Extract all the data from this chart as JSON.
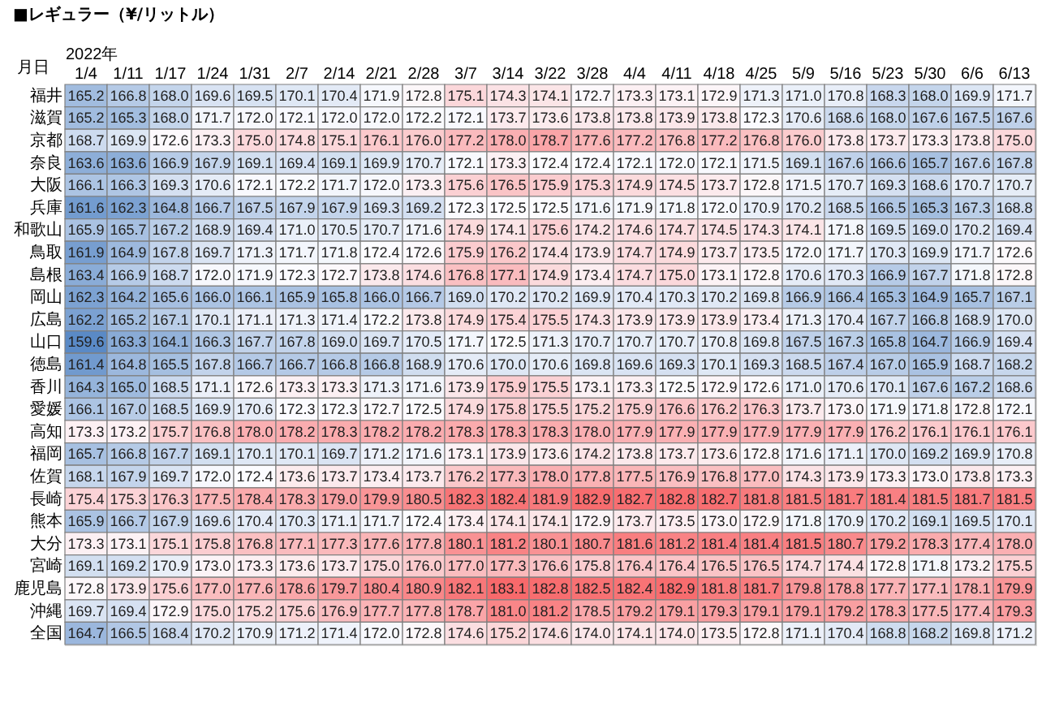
{
  "chart_data": {
    "type": "heatmap",
    "title": "■レギュラー（¥/リットル）",
    "xlabel": "2022年",
    "ylabel": "月日",
    "categories": [
      "1/4",
      "1/11",
      "1/17",
      "1/24",
      "1/31",
      "2/7",
      "2/14",
      "2/21",
      "2/28",
      "3/7",
      "3/14",
      "3/22",
      "3/28",
      "4/4",
      "4/11",
      "4/18",
      "4/25",
      "5/9",
      "5/16",
      "5/23",
      "5/30",
      "6/6",
      "6/13"
    ],
    "y_categories": [
      "福井",
      "滋賀",
      "京都",
      "奈良",
      "大阪",
      "兵庫",
      "和歌山",
      "鳥取",
      "島根",
      "岡山",
      "広島",
      "山口",
      "徳島",
      "香川",
      "愛媛",
      "高知",
      "福岡",
      "佐賀",
      "長崎",
      "熊本",
      "大分",
      "宮崎",
      "鹿児島",
      "沖縄",
      "全国"
    ],
    "cells": [
      [
        165.2,
        166.8,
        168.0,
        169.6,
        169.5,
        170.1,
        170.4,
        171.9,
        172.8,
        175.1,
        174.3,
        174.1,
        172.7,
        173.3,
        173.1,
        172.9,
        171.3,
        171.0,
        170.8,
        168.3,
        168.0,
        169.9,
        171.7
      ],
      [
        165.2,
        165.3,
        168.0,
        171.7,
        172.0,
        172.1,
        172.0,
        172.0,
        172.2,
        172.1,
        173.7,
        173.6,
        173.8,
        173.8,
        173.9,
        173.8,
        172.3,
        170.6,
        168.6,
        168.0,
        167.6,
        167.5,
        167.6
      ],
      [
        168.7,
        169.9,
        172.6,
        173.3,
        175.0,
        174.8,
        175.1,
        176.1,
        176.0,
        177.2,
        178.0,
        178.7,
        177.6,
        177.2,
        176.8,
        177.2,
        176.8,
        176.0,
        173.8,
        173.7,
        173.3,
        173.8,
        175.0
      ],
      [
        163.6,
        163.6,
        166.9,
        167.9,
        169.1,
        169.4,
        169.1,
        169.9,
        170.7,
        172.1,
        173.3,
        172.4,
        172.4,
        172.1,
        172.0,
        172.1,
        171.5,
        169.1,
        167.6,
        166.6,
        165.7,
        167.6,
        167.8
      ],
      [
        166.1,
        166.3,
        169.3,
        170.6,
        172.1,
        172.2,
        171.7,
        172.0,
        173.3,
        175.6,
        176.5,
        175.9,
        175.3,
        174.9,
        174.5,
        173.7,
        172.8,
        171.5,
        170.7,
        169.3,
        168.6,
        170.7,
        170.7
      ],
      [
        161.6,
        162.3,
        164.8,
        166.7,
        167.5,
        167.9,
        167.9,
        169.3,
        169.2,
        172.3,
        172.5,
        172.5,
        171.6,
        171.9,
        171.8,
        172.0,
        170.9,
        170.2,
        168.5,
        166.5,
        165.3,
        167.3,
        168.8
      ],
      [
        165.9,
        165.7,
        167.2,
        168.9,
        169.4,
        171.0,
        170.5,
        170.7,
        171.6,
        174.9,
        174.1,
        175.6,
        174.2,
        174.6,
        174.7,
        174.5,
        174.3,
        174.1,
        171.8,
        169.5,
        169.0,
        170.2,
        169.4
      ],
      [
        161.9,
        164.9,
        167.8,
        169.7,
        171.3,
        171.7,
        171.8,
        172.4,
        172.6,
        175.9,
        176.2,
        174.4,
        173.9,
        174.7,
        174.9,
        173.7,
        173.5,
        172.0,
        171.7,
        170.3,
        169.9,
        171.7,
        172.6
      ],
      [
        163.4,
        166.9,
        168.7,
        172.0,
        171.9,
        172.3,
        172.7,
        173.8,
        174.6,
        176.8,
        177.1,
        174.9,
        173.4,
        174.7,
        175.0,
        173.1,
        172.8,
        170.6,
        170.3,
        166.9,
        167.7,
        171.8,
        172.8
      ],
      [
        162.3,
        164.2,
        165.6,
        166.0,
        166.1,
        165.9,
        165.8,
        166.0,
        166.7,
        169.0,
        170.2,
        170.2,
        169.9,
        170.4,
        170.3,
        170.2,
        169.8,
        166.9,
        166.4,
        165.3,
        164.9,
        165.7,
        167.1
      ],
      [
        162.2,
        165.2,
        167.1,
        170.1,
        171.1,
        171.3,
        171.4,
        172.2,
        173.8,
        174.9,
        175.4,
        175.5,
        174.3,
        173.9,
        173.9,
        173.9,
        173.4,
        171.3,
        170.4,
        167.7,
        166.8,
        168.9,
        170.0
      ],
      [
        159.6,
        163.3,
        164.1,
        166.3,
        167.7,
        167.8,
        169.0,
        169.7,
        170.5,
        171.7,
        172.5,
        171.3,
        170.7,
        170.7,
        170.7,
        170.8,
        169.8,
        167.5,
        167.3,
        165.8,
        164.7,
        166.9,
        169.4
      ],
      [
        161.4,
        164.8,
        165.5,
        167.8,
        166.7,
        166.7,
        166.8,
        166.8,
        168.9,
        170.6,
        170.0,
        170.6,
        169.8,
        169.6,
        169.3,
        170.1,
        169.3,
        168.5,
        167.4,
        167.0,
        165.9,
        168.7,
        168.2
      ],
      [
        164.3,
        165.0,
        168.5,
        171.1,
        172.6,
        173.3,
        173.3,
        171.3,
        171.6,
        173.9,
        175.9,
        175.5,
        173.1,
        173.3,
        172.5,
        172.9,
        172.6,
        171.0,
        170.6,
        170.1,
        167.6,
        167.2,
        168.6
      ],
      [
        166.1,
        167.0,
        168.5,
        169.9,
        170.6,
        172.3,
        172.3,
        172.7,
        172.5,
        174.9,
        175.8,
        175.5,
        175.2,
        175.9,
        176.6,
        176.2,
        176.3,
        173.7,
        173.0,
        171.9,
        171.8,
        172.8,
        172.1
      ],
      [
        173.3,
        173.2,
        175.7,
        176.8,
        178.0,
        178.2,
        178.3,
        178.2,
        178.2,
        178.3,
        178.3,
        178.3,
        178.0,
        177.9,
        177.9,
        177.9,
        177.9,
        177.9,
        177.9,
        176.2,
        176.1,
        176.1,
        176.1
      ],
      [
        165.7,
        166.8,
        167.7,
        169.1,
        170.1,
        170.1,
        169.7,
        171.2,
        171.6,
        173.1,
        173.9,
        173.6,
        174.2,
        173.8,
        173.7,
        173.6,
        172.8,
        171.6,
        171.1,
        170.0,
        169.2,
        169.9,
        170.8
      ],
      [
        168.1,
        167.9,
        169.7,
        172.0,
        172.4,
        173.6,
        173.7,
        173.4,
        173.7,
        176.2,
        177.3,
        178.0,
        177.8,
        177.5,
        176.9,
        176.8,
        177.0,
        174.3,
        173.9,
        173.3,
        173.0,
        173.8,
        173.3
      ],
      [
        175.4,
        175.3,
        176.3,
        177.5,
        178.4,
        178.3,
        179.0,
        179.9,
        180.5,
        182.3,
        182.4,
        181.9,
        182.9,
        182.7,
        182.8,
        182.7,
        181.8,
        181.5,
        181.7,
        181.4,
        181.5,
        181.7,
        181.5
      ],
      [
        165.9,
        166.7,
        167.9,
        169.6,
        170.4,
        170.3,
        171.1,
        171.7,
        172.4,
        173.4,
        174.1,
        174.1,
        172.9,
        173.7,
        173.5,
        173.0,
        172.9,
        171.8,
        170.9,
        170.2,
        169.1,
        169.5,
        170.1
      ],
      [
        173.3,
        173.1,
        175.1,
        175.8,
        176.8,
        177.1,
        177.3,
        177.6,
        177.8,
        180.1,
        181.2,
        180.1,
        180.7,
        181.6,
        181.2,
        181.4,
        181.4,
        181.5,
        180.7,
        179.2,
        178.3,
        177.4,
        178.0
      ],
      [
        169.1,
        169.2,
        170.9,
        173.0,
        173.3,
        173.6,
        173.7,
        175.0,
        176.0,
        177.0,
        177.3,
        176.6,
        175.8,
        176.4,
        176.4,
        176.5,
        176.5,
        174.7,
        174.4,
        172.8,
        171.8,
        173.2,
        175.5
      ],
      [
        172.8,
        173.9,
        175.6,
        177.0,
        177.6,
        178.6,
        179.7,
        180.4,
        180.9,
        182.1,
        183.1,
        182.8,
        182.5,
        182.4,
        182.9,
        181.8,
        181.7,
        179.8,
        178.8,
        177.7,
        177.1,
        178.1,
        179.9
      ],
      [
        169.7,
        169.4,
        172.9,
        175.0,
        175.2,
        175.6,
        176.9,
        177.7,
        177.8,
        178.7,
        181.0,
        181.2,
        178.5,
        179.2,
        179.1,
        179.3,
        179.1,
        179.1,
        179.2,
        178.3,
        177.5,
        177.4,
        179.3
      ],
      [
        164.7,
        166.5,
        168.4,
        170.2,
        170.9,
        171.2,
        171.4,
        172.0,
        172.8,
        174.6,
        175.2,
        174.6,
        174.0,
        174.1,
        174.0,
        173.5,
        172.8,
        171.1,
        170.4,
        168.8,
        168.2,
        169.8,
        171.2
      ]
    ],
    "cell_labels": [
      [
        "165.2",
        "166.8",
        "168.0",
        "169.6",
        "169.5",
        "170.1",
        "170.4",
        "171.9",
        "172.8",
        "175.1",
        "174.3",
        "174.1",
        "172.7",
        "173.3",
        "173.1",
        "172.9",
        "171.3",
        "171.0",
        "170.8",
        "168.3",
        "168.0",
        "169.9",
        "171.7"
      ],
      [
        "165.2",
        "165.3",
        "168.0",
        "171.7",
        "172.0",
        "172.1",
        "172.0",
        "172.0",
        "172.2",
        "172.1",
        "173.7",
        "173.6",
        "173.8",
        "173.8",
        "173.9",
        "173.8",
        "172.3",
        "170.6",
        "168.6",
        "168.0",
        "167.6",
        "167.5",
        "167.6"
      ],
      [
        "168.7",
        "169.9",
        "172.6",
        "173.3",
        "175.0",
        "174.8",
        "175.1",
        "176.1",
        "176.0",
        "177.2",
        "178.0",
        "178.7",
        "177.6",
        "177.2",
        "176.8",
        "177.2",
        "176.8",
        "176.0",
        "173.8",
        "173.7",
        "173.3",
        "173.8",
        "175.0"
      ],
      [
        "163.6",
        "163.6",
        "166.9",
        "167.9",
        "169.1",
        "169.4",
        "169.1",
        "169.9",
        "170.7",
        "172.1",
        "173.3",
        "172.4",
        "172.4",
        "172.1",
        "172.0",
        "172.1",
        "171.5",
        "169.1",
        "167.6",
        "166.6",
        "165.7",
        "167.6",
        "167.8"
      ],
      [
        "166.1",
        "166.3",
        "169.3",
        "170.6",
        "172.1",
        "172.2",
        "171.7",
        "172.0",
        "173.3",
        "175.6",
        "176.5",
        "175.9",
        "175.3",
        "174.9",
        "174.5",
        "173.7",
        "172.8",
        "171.5",
        "170.7",
        "169.3",
        "168.6",
        "170.7",
        "170.7"
      ],
      [
        "161.6",
        "162.3",
        "164.8",
        "166.7",
        "167.5",
        "167.9",
        "167.9",
        "169.3",
        "169.2",
        "172.3",
        "172.5",
        "172.5",
        "171.6",
        "171.9",
        "171.8",
        "172.0",
        "170.9",
        "170.2",
        "168.5",
        "166.5",
        "165.3",
        "167.3",
        "168.8"
      ],
      [
        "165.9",
        "165.7",
        "167.2",
        "168.9",
        "169.4",
        "171.0",
        "170.5",
        "170.7",
        "171.6",
        "174.9",
        "174.1",
        "175.6",
        "174.2",
        "174.6",
        "174.7",
        "174.5",
        "174.3",
        "174.1",
        "171.8",
        "169.5",
        "169.0",
        "170.2",
        "169.4"
      ],
      [
        "161.9",
        "164.9",
        "167.8",
        "169.7",
        "171.3",
        "171.7",
        "171.8",
        "172.4",
        "172.6",
        "175.9",
        "176.2",
        "174.4",
        "173.9",
        "174.7",
        "174.9",
        "173.7",
        "173.5",
        "172.0",
        "171.7",
        "170.3",
        "169.9",
        "171.7",
        "172.6"
      ],
      [
        "163.4",
        "166.9",
        "168.7",
        "172.0",
        "171.9",
        "172.3",
        "172.7",
        "173.8",
        "174.6",
        "176.8",
        "177.1",
        "174.9",
        "173.4",
        "174.7",
        "175.0",
        "173.1",
        "172.8",
        "170.6",
        "170.3",
        "166.9",
        "167.7",
        "171.8",
        "172.8"
      ],
      [
        "162.3",
        "164.2",
        "165.6",
        "166.0",
        "166.1",
        "165.9",
        "165.8",
        "166.0",
        "166.7",
        "169.0",
        "170.2",
        "170.2",
        "169.9",
        "170.4",
        "170.3",
        "170.2",
        "169.8",
        "166.9",
        "166.4",
        "165.3",
        "164.9",
        "165.7",
        "167.1"
      ],
      [
        "162.2",
        "165.2",
        "167.1",
        "170.1",
        "171.1",
        "171.3",
        "171.4",
        "172.2",
        "173.8",
        "174.9",
        "175.4",
        "175.5",
        "174.3",
        "173.9",
        "173.9",
        "173.9",
        "173.4",
        "171.3",
        "170.4",
        "167.7",
        "166.8",
        "168.9",
        "170.0"
      ],
      [
        "159.6",
        "163.3",
        "164.1",
        "166.3",
        "167.7",
        "167.8",
        "169.0",
        "169.7",
        "170.5",
        "171.7",
        "172.5",
        "171.3",
        "170.7",
        "170.7",
        "170.7",
        "170.8",
        "169.8",
        "167.5",
        "167.3",
        "165.8",
        "164.7",
        "166.9",
        "169.4"
      ],
      [
        "161.4",
        "164.8",
        "165.5",
        "167.8",
        "166.7",
        "166.7",
        "166.8",
        "166.8",
        "168.9",
        "170.6",
        "170.0",
        "170.6",
        "169.8",
        "169.6",
        "169.3",
        "170.1",
        "169.3",
        "168.5",
        "167.4",
        "167.0",
        "165.9",
        "168.7",
        "168.2"
      ],
      [
        "164.3",
        "165.0",
        "168.5",
        "171.1",
        "172.6",
        "173.3",
        "173.3",
        "171.3",
        "171.6",
        "173.9",
        "175.9",
        "175.5",
        "173.1",
        "173.3",
        "172.5",
        "172.9",
        "172.6",
        "171.0",
        "170.6",
        "170.1",
        "167.6",
        "167.2",
        "168.6"
      ],
      [
        "166.1",
        "167.0",
        "168.5",
        "169.9",
        "170.6",
        "172.3",
        "172.3",
        "172.7",
        "172.5",
        "174.9",
        "175.8",
        "175.5",
        "175.2",
        "175.9",
        "176.6",
        "176.2",
        "176.3",
        "173.7",
        "173.0",
        "171.9",
        "171.8",
        "172.8",
        "172.1"
      ],
      [
        "173.3",
        "173.2",
        "175.7",
        "176.8",
        "178.0",
        "178.2",
        "178.3",
        "178.2",
        "178.2",
        "178.3",
        "178.3",
        "178.3",
        "178.0",
        "177.9",
        "177.9",
        "177.9",
        "177.9",
        "177.9",
        "177.9",
        "176.2",
        "176.1",
        "176.1",
        "176.1"
      ],
      [
        "165.7",
        "166.8",
        "167.7",
        "169.1",
        "170.1",
        "170.1",
        "169.7",
        "171.2",
        "171.6",
        "173.1",
        "173.9",
        "173.6",
        "174.2",
        "173.8",
        "173.7",
        "173.6",
        "172.8",
        "171.6",
        "171.1",
        "170.0",
        "169.2",
        "169.9",
        "170.8"
      ],
      [
        "168.1",
        "167.9",
        "169.7",
        "172.0",
        "172.4",
        "173.6",
        "173.7",
        "173.4",
        "173.7",
        "176.2",
        "177.3",
        "178.0",
        "177.8",
        "177.5",
        "176.9",
        "176.8",
        "177.0",
        "174.3",
        "173.9",
        "173.3",
        "173.0",
        "173.8",
        "173.3"
      ],
      [
        "175.4",
        "175.3",
        "176.3",
        "177.5",
        "178.4",
        "178.3",
        "179.0",
        "179.9",
        "180.5",
        "182.3",
        "182.4",
        "181.9",
        "182.9",
        "182.7",
        "182.8",
        "182.7",
        "181.8",
        "181.5",
        "181.7",
        "181.4",
        "181.5",
        "181.7",
        "181.5"
      ],
      [
        "165.9",
        "166.7",
        "167.9",
        "169.6",
        "170.4",
        "170.3",
        "171.1",
        "171.7",
        "172.4",
        "173.4",
        "174.1",
        "174.1",
        "172.9",
        "173.7",
        "173.5",
        "173.0",
        "172.9",
        "171.8",
        "170.9",
        "170.2",
        "169.1",
        "169.5",
        "170.1"
      ],
      [
        "173.3",
        "173.1",
        "175.1",
        "175.8",
        "176.8",
        "177.1",
        "177.3",
        "177.6",
        "177.8",
        "180.1",
        "181.2",
        "180.1",
        "180.7",
        "181.6",
        "181.2",
        "181.4",
        "181.4",
        "181.5",
        "180.7",
        "179.2",
        "178.3",
        "177.4",
        "178.0"
      ],
      [
        "169.1",
        "169.2",
        "170.9",
        "173.0",
        "173.3",
        "173.6",
        "173.7",
        "175.0",
        "176.0",
        "177.0",
        "177.3",
        "176.6",
        "175.8",
        "176.4",
        "176.4",
        "176.5",
        "176.5",
        "174.7",
        "174.4",
        "172.8",
        "171.8",
        "173.2",
        "175.5"
      ],
      [
        "172.8",
        "173.9",
        "175.6",
        "177.0",
        "177.6",
        "178.6",
        "179.7",
        "180.4",
        "180.9",
        "182.1",
        "183.1",
        "182.8",
        "182.5",
        "182.4",
        "182.9",
        "181.8",
        "181.7",
        "179.8",
        "178.8",
        "177.7",
        "177.1",
        "178.1",
        "179.9"
      ],
      [
        "169.7",
        "169.4",
        "172.9",
        "175.0",
        "175.2",
        "175.6",
        "176.9",
        "177.7",
        "177.8",
        "178.7",
        "181.0",
        "181.2",
        "178.5",
        "179.2",
        "179.1",
        "179.3",
        "179.1",
        "179.1",
        "179.2",
        "178.3",
        "177.5",
        "177.4",
        "179.3"
      ],
      [
        "164.7",
        "166.5",
        "168.4",
        "170.2",
        "170.9",
        "171.2",
        "171.4",
        "172.0",
        "172.8",
        "174.6",
        "175.2",
        "174.6",
        "174.0",
        "174.1",
        "174.0",
        "173.5",
        "172.8",
        "171.1",
        "170.4",
        "168.8",
        "168.2",
        "169.8",
        "171.2"
      ]
    ]
  }
}
